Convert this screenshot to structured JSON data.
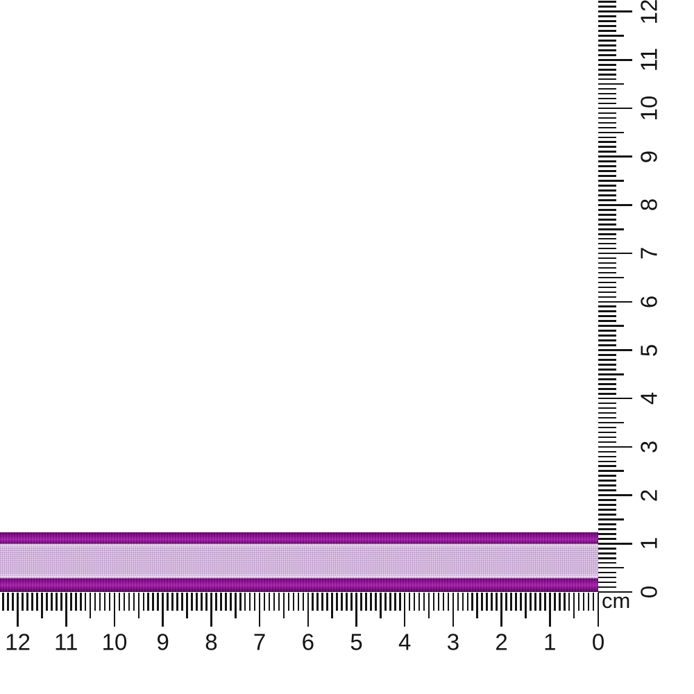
{
  "rulers": {
    "unit_label": "cm",
    "horizontal": {
      "labels": [
        "0",
        "1",
        "2",
        "3",
        "4",
        "5",
        "6",
        "7",
        "8",
        "9",
        "10",
        "11",
        "12"
      ],
      "direction": "zero-at-right"
    },
    "vertical": {
      "labels": [
        "0",
        "1",
        "2",
        "3",
        "4",
        "5",
        "6",
        "7",
        "8",
        "9",
        "10",
        "11",
        "12"
      ],
      "direction": "zero-at-bottom"
    }
  },
  "ribbon": {
    "parts": [
      "satin-edge-top",
      "organza-center",
      "satin-edge-bottom"
    ],
    "measured_width_cm": "approx 1.2"
  },
  "colors": {
    "background": "#FFFFFF",
    "ink": "#141414",
    "satin": "#8E0E95",
    "satin_dark": "#6B0A72",
    "satin_deep": "#4E0554",
    "satin_sheen": "#A824AE",
    "organza": "#D2B4DC",
    "organza_light": "#E6D5EC",
    "organza_thread": "#9A63AF",
    "stitch": "#EADDF0"
  }
}
